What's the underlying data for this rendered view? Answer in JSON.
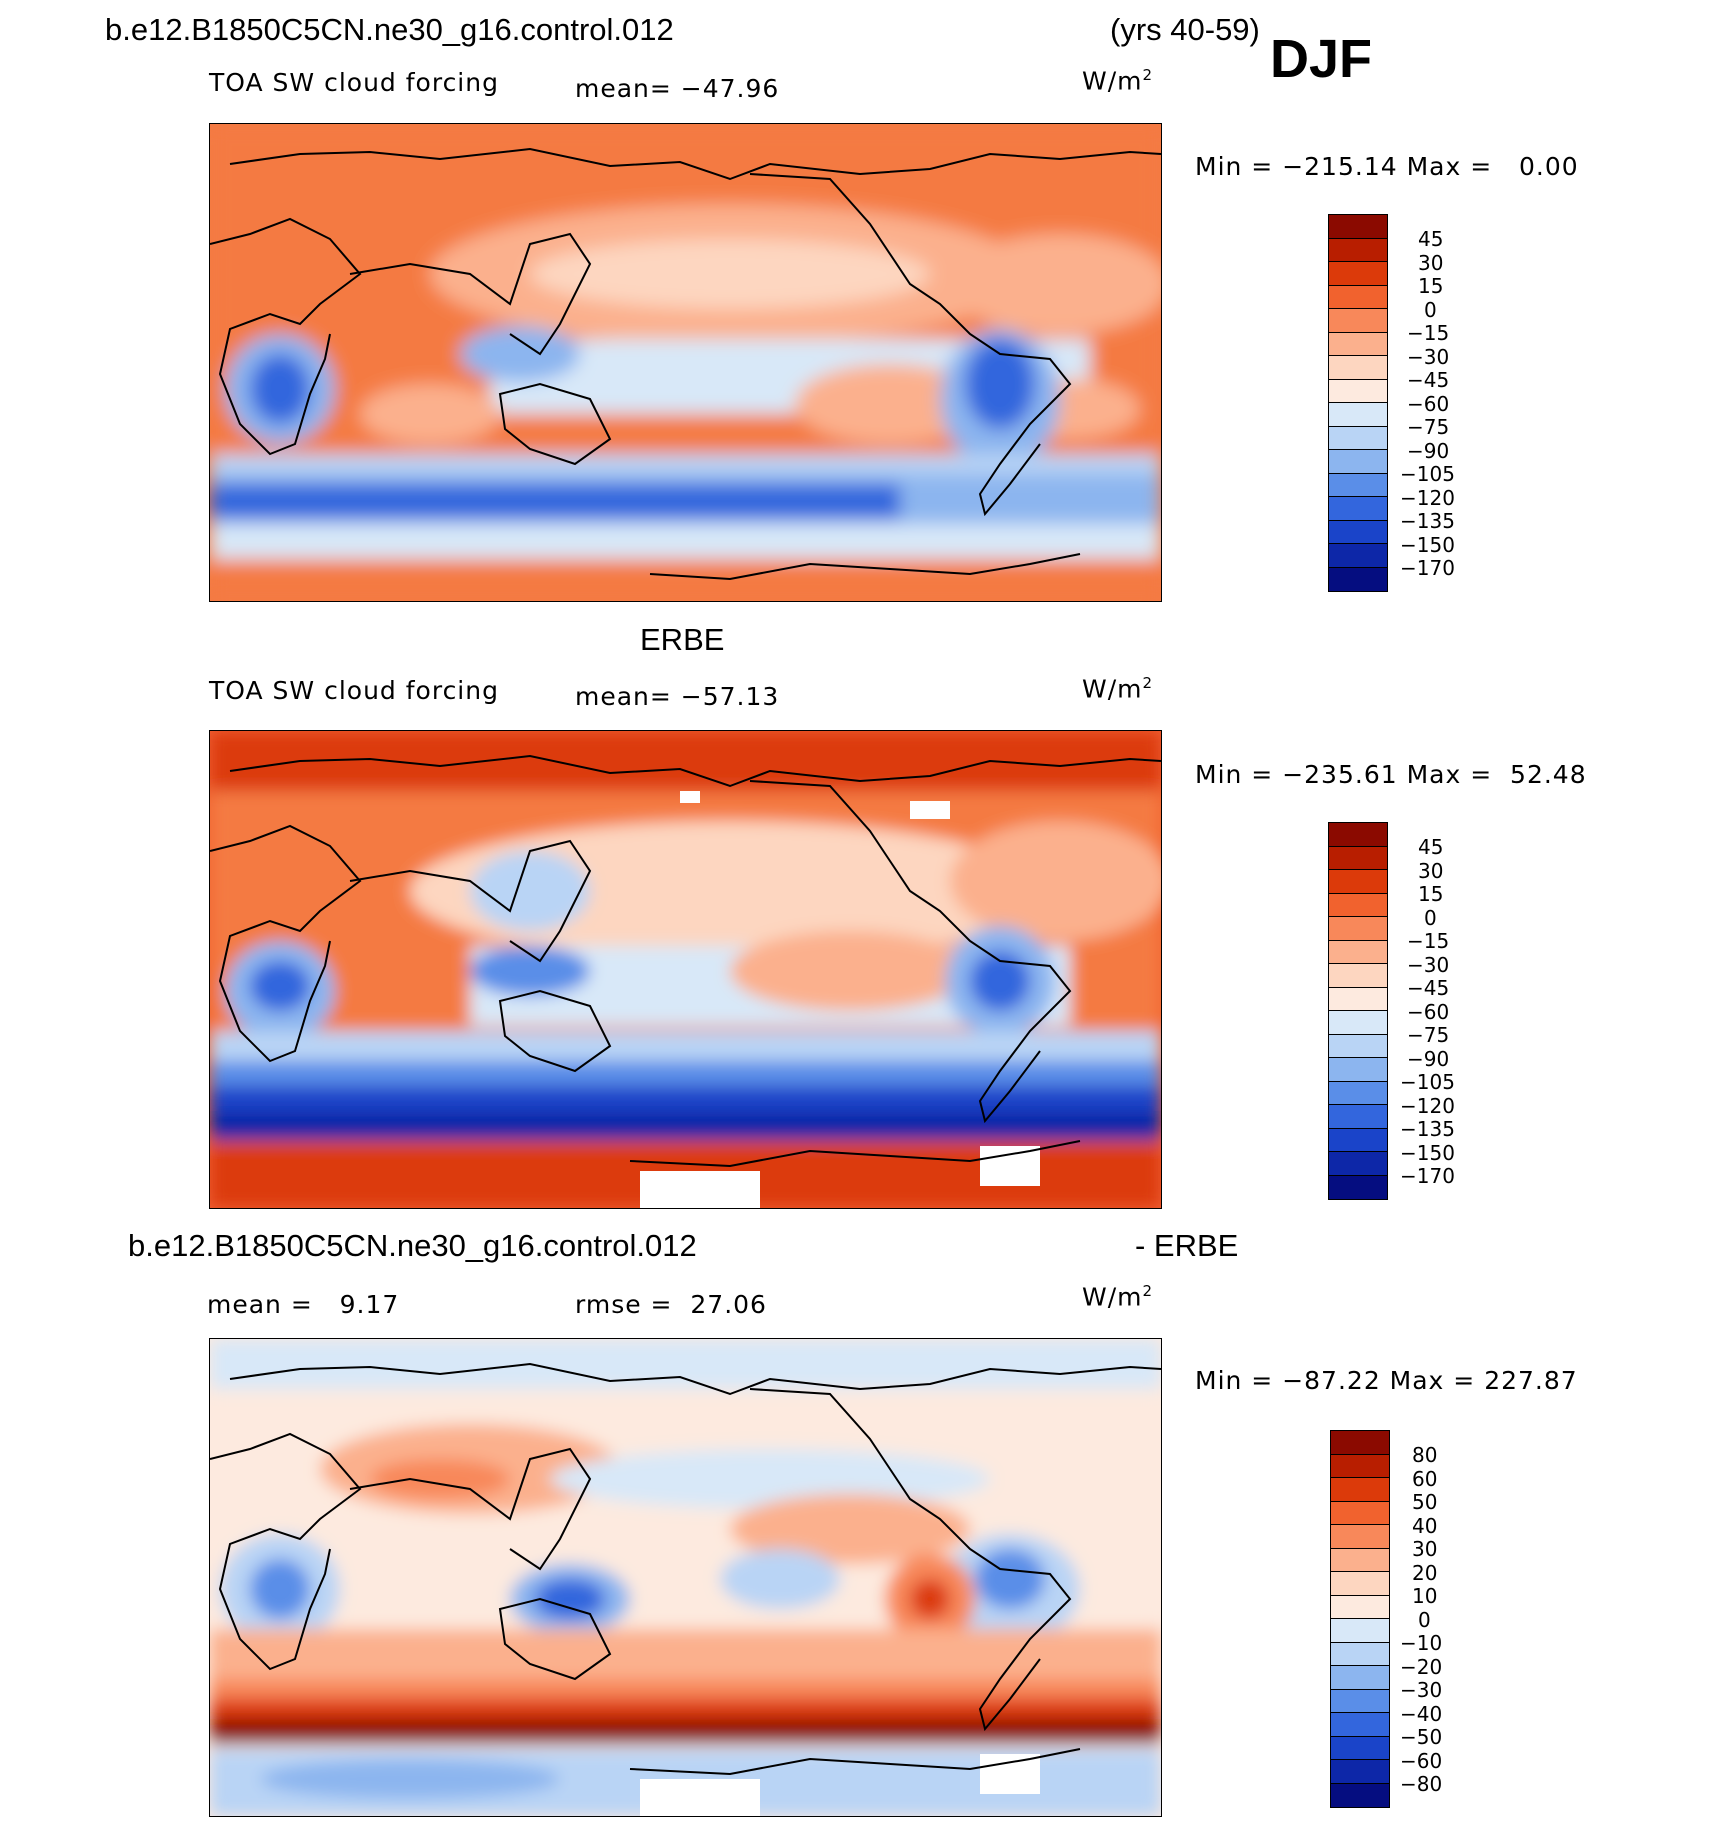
{
  "header": {
    "case_name": "b.e12.B1850C5CN.ne30_g16.control.012",
    "years": "(yrs 40-59)",
    "season": "DJF"
  },
  "panels": [
    {
      "title": "",
      "variable": "TOA SW cloud forcing",
      "mean_text": "mean= −47.96",
      "units": "W/m",
      "units_exp": "2",
      "minmax_text": "Min = −215.14 Max =   0.00",
      "levels": [
        "45",
        "30",
        "15",
        "0",
        "−15",
        "−30",
        "−45",
        "−60",
        "−75",
        "−90",
        "−105",
        "−120",
        "−135",
        "−150",
        "−170"
      ],
      "colors": [
        "#8b0a00",
        "#b81e00",
        "#dc3a0a",
        "#f1622e",
        "#f8885a",
        "#fbb08d",
        "#fdd6c0",
        "#fdeadf",
        "#d8e8f8",
        "#b9d4f5",
        "#8cb5ef",
        "#5a8ee8",
        "#3366dd",
        "#1a44c9",
        "#0d27a8",
        "#050d80"
      ]
    },
    {
      "title": "ERBE",
      "variable": "TOA SW cloud forcing",
      "mean_text": "mean= −57.13",
      "units": "W/m",
      "units_exp": "2",
      "minmax_text": "Min = −235.61 Max =  52.48",
      "levels": [
        "45",
        "30",
        "15",
        "0",
        "−15",
        "−30",
        "−45",
        "−60",
        "−75",
        "−90",
        "−105",
        "−120",
        "−135",
        "−150",
        "−170"
      ],
      "colors": [
        "#8b0a00",
        "#b81e00",
        "#dc3a0a",
        "#f1622e",
        "#f8885a",
        "#fbb08d",
        "#fdd6c0",
        "#fdeadf",
        "#d8e8f8",
        "#b9d4f5",
        "#8cb5ef",
        "#5a8ee8",
        "#3366dd",
        "#1a44c9",
        "#0d27a8",
        "#050d80"
      ]
    },
    {
      "title_left": "b.e12.B1850C5CN.ne30_g16.control.012",
      "title_right": "- ERBE",
      "mean_text": "mean =   9.17",
      "rmse_text": "rmse =  27.06",
      "units": "W/m",
      "units_exp": "2",
      "minmax_text": "Min = −87.22 Max = 227.87",
      "levels": [
        "80",
        "60",
        "50",
        "40",
        "30",
        "20",
        "10",
        "0",
        "−10",
        "−20",
        "−30",
        "−40",
        "−50",
        "−60",
        "−80"
      ],
      "colors": [
        "#8b0a00",
        "#b81e00",
        "#dc3a0a",
        "#f1622e",
        "#f8885a",
        "#fbb08d",
        "#fdd6c0",
        "#fdeadf",
        "#d8e8f8",
        "#b9d4f5",
        "#8cb5ef",
        "#5a8ee8",
        "#3366dd",
        "#1a44c9",
        "#0d27a8",
        "#050d80"
      ]
    }
  ]
}
